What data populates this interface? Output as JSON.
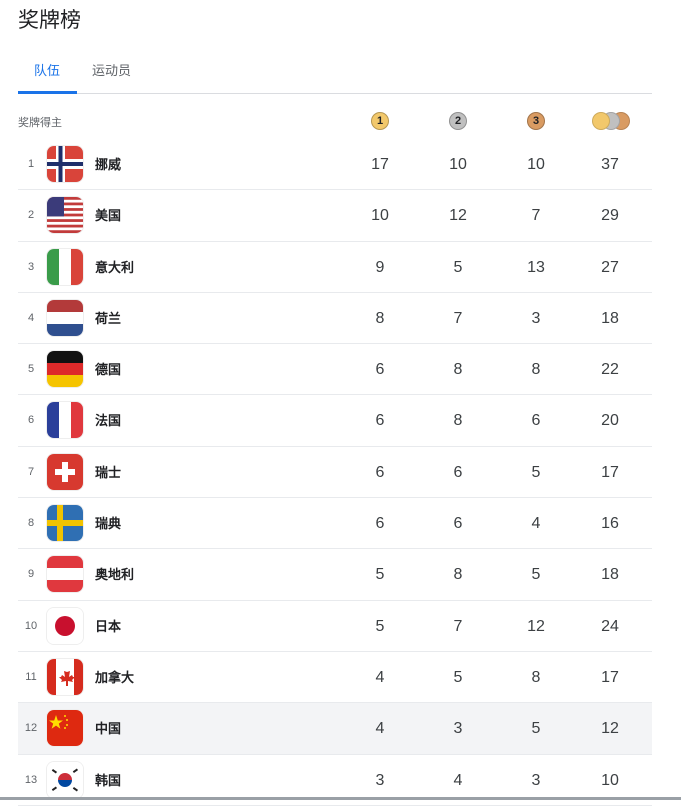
{
  "title": "奖牌榜",
  "tabs": [
    {
      "label": "队伍",
      "active": true
    },
    {
      "label": "运动员",
      "active": false
    }
  ],
  "header": {
    "label": "奖牌得主",
    "gold": "1",
    "silver": "2",
    "bronze": "3"
  },
  "colors": {
    "gold": "#f2c86b",
    "silver": "#c0c0c0",
    "bronze": "#d99b62",
    "accent": "#1a73e8"
  },
  "rows": [
    {
      "rank": "1",
      "name": "挪威",
      "flag": "norway",
      "gold": "17",
      "silver": "10",
      "bronze": "10",
      "total": "37"
    },
    {
      "rank": "2",
      "name": "美国",
      "flag": "usa",
      "gold": "10",
      "silver": "12",
      "bronze": "7",
      "total": "29"
    },
    {
      "rank": "3",
      "name": "意大利",
      "flag": "italy",
      "gold": "9",
      "silver": "5",
      "bronze": "13",
      "total": "27"
    },
    {
      "rank": "4",
      "name": "荷兰",
      "flag": "netherlands",
      "gold": "8",
      "silver": "7",
      "bronze": "3",
      "total": "18"
    },
    {
      "rank": "5",
      "name": "德国",
      "flag": "germany",
      "gold": "6",
      "silver": "8",
      "bronze": "8",
      "total": "22"
    },
    {
      "rank": "6",
      "name": "法国",
      "flag": "france",
      "gold": "6",
      "silver": "8",
      "bronze": "6",
      "total": "20"
    },
    {
      "rank": "7",
      "name": "瑞士",
      "flag": "switzerland",
      "gold": "6",
      "silver": "6",
      "bronze": "5",
      "total": "17"
    },
    {
      "rank": "8",
      "name": "瑞典",
      "flag": "sweden",
      "gold": "6",
      "silver": "6",
      "bronze": "4",
      "total": "16"
    },
    {
      "rank": "9",
      "name": "奥地利",
      "flag": "austria",
      "gold": "5",
      "silver": "8",
      "bronze": "5",
      "total": "18"
    },
    {
      "rank": "10",
      "name": "日本",
      "flag": "japan",
      "gold": "5",
      "silver": "7",
      "bronze": "12",
      "total": "24"
    },
    {
      "rank": "11",
      "name": "加拿大",
      "flag": "canada",
      "gold": "4",
      "silver": "5",
      "bronze": "8",
      "total": "17"
    },
    {
      "rank": "12",
      "name": "中国",
      "flag": "china",
      "gold": "4",
      "silver": "3",
      "bronze": "5",
      "total": "12",
      "highlighted": true
    },
    {
      "rank": "13",
      "name": "韩国",
      "flag": "korea",
      "gold": "3",
      "silver": "4",
      "bronze": "3",
      "total": "10"
    }
  ]
}
